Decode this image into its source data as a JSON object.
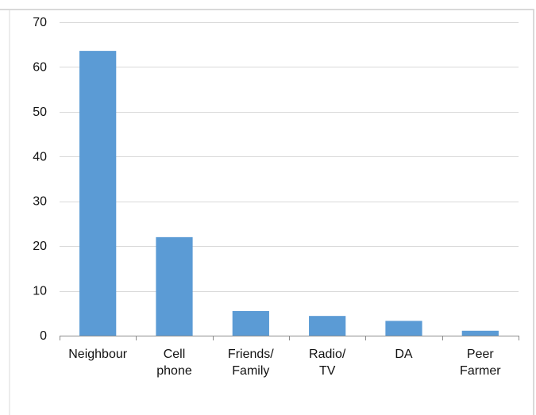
{
  "chart_data": {
    "type": "bar",
    "title": "",
    "xlabel": "",
    "ylabel": "",
    "categories": [
      [
        "Neighbour"
      ],
      [
        "Cell",
        "phone"
      ],
      [
        "Friends/",
        "Family"
      ],
      [
        "Radio/",
        "TV"
      ],
      [
        "DA"
      ],
      [
        "Peer",
        "Farmer"
      ]
    ],
    "values": [
      63.6,
      22.0,
      5.5,
      4.4,
      3.3,
      1.1
    ],
    "ylim": [
      0,
      70
    ],
    "yticks": [
      0,
      10,
      20,
      30,
      40,
      50,
      60,
      70
    ],
    "grid": true,
    "legend": "none",
    "bar_color": "#5B9BD5",
    "grid_color": "#D9D9D9",
    "axis_color": "#8C8C8C",
    "border_color": "#D9D9D9"
  }
}
